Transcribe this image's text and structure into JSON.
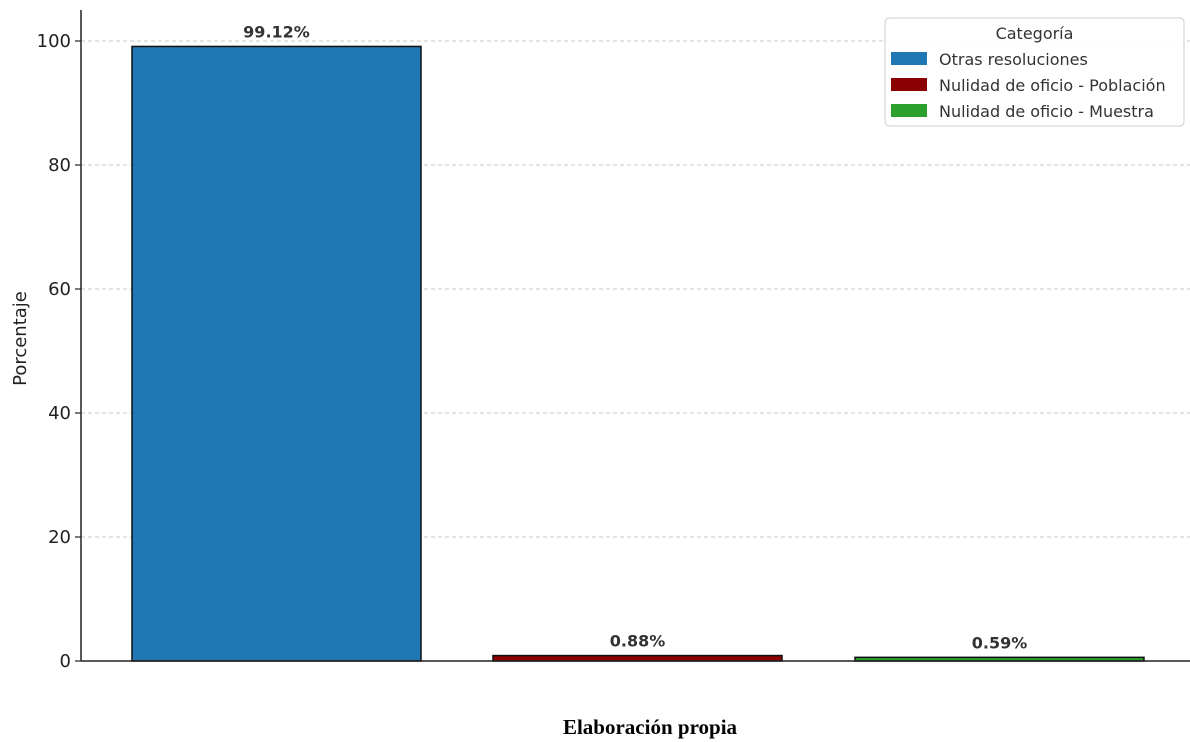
{
  "caption": "Elaboración propia",
  "colors": {
    "otras": "#1f77b4",
    "poblacion": "#8b0000",
    "muestra": "#2ca02c",
    "grid": "#c8c8c8",
    "axis": "#222222",
    "bar_edge": "#111111"
  },
  "chart_data": {
    "type": "bar",
    "ylabel": "Porcentaje",
    "xlabel": "",
    "ylim": [
      0,
      105
    ],
    "yticks": [
      0,
      20,
      40,
      60,
      80,
      100
    ],
    "grid": "horizontal dashed",
    "legend_placement": "top-right",
    "series": [
      {
        "name": "Otras resoluciones",
        "value": 99.12,
        "label": "99.12%",
        "color_key": "otras"
      },
      {
        "name": "Nulidad de oficio - Población",
        "value": 0.88,
        "label": "0.88%",
        "color_key": "poblacion"
      },
      {
        "name": "Nulidad de oficio - Muestra",
        "value": 0.59,
        "label": "0.59%",
        "color_key": "muestra"
      }
    ],
    "legend": {
      "title": "Categoría",
      "entries": [
        "Otras resoluciones",
        "Nulidad de oficio - Población",
        "Nulidad de oficio - Muestra"
      ]
    }
  }
}
